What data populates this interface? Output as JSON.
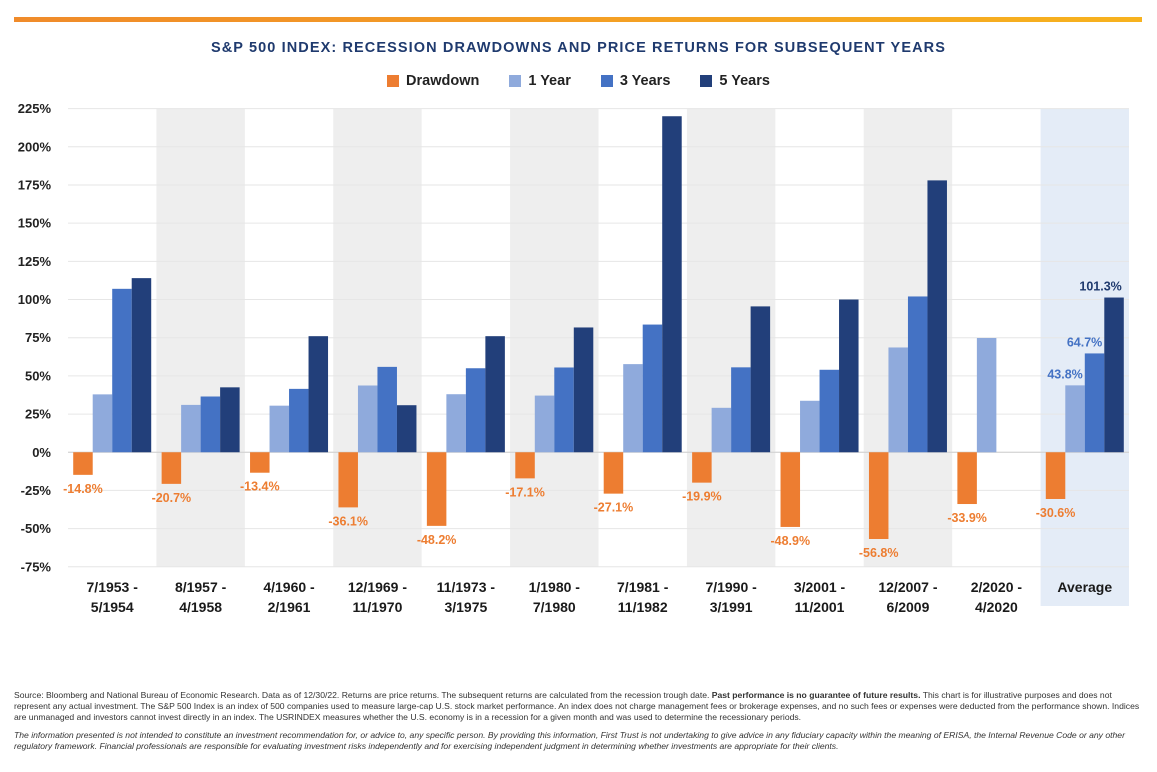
{
  "colors": {
    "drawdown": "#ed7d31",
    "one_year": "#8faadc",
    "three_years": "#4472c4",
    "five_years": "#223f7a",
    "band": "#eeeeee",
    "average_band": "#e4ecf7",
    "title": "#1f3a6e"
  },
  "chart_data": {
    "type": "bar",
    "title": "S&P 500 INDEX: RECESSION DRAWDOWNS AND PRICE RETURNS FOR SUBSEQUENT YEARS",
    "xlabel": "",
    "ylabel": "",
    "ylim": [
      -75,
      225
    ],
    "yticks": [
      -75,
      -50,
      -25,
      0,
      25,
      50,
      75,
      100,
      125,
      150,
      175,
      200,
      225
    ],
    "ytick_labels": [
      "-75%",
      "-50%",
      "-25%",
      "0%",
      "25%",
      "50%",
      "75%",
      "100%",
      "125%",
      "150%",
      "175%",
      "200%",
      "225%"
    ],
    "legend_position": "top-center",
    "categories": [
      [
        "7/1953 -",
        "5/1954"
      ],
      [
        "8/1957 -",
        "4/1958"
      ],
      [
        "4/1960 -",
        "2/1961"
      ],
      [
        "12/1969 -",
        "11/1970"
      ],
      [
        "11/1973 -",
        "3/1975"
      ],
      [
        "1/1980 -",
        "7/1980"
      ],
      [
        "7/1981 -",
        "11/1982"
      ],
      [
        "7/1990 -",
        "3/1991"
      ],
      [
        "3/2001 -",
        "11/2001"
      ],
      [
        "12/2007 -",
        "6/2009"
      ],
      [
        "2/2020 -",
        "4/2020"
      ],
      [
        "Average"
      ]
    ],
    "series": [
      {
        "name": "Drawdown",
        "values": [
          -14.8,
          -20.7,
          -13.4,
          -36.1,
          -48.2,
          -17.1,
          -27.1,
          -19.9,
          -48.9,
          -56.8,
          -33.9,
          -30.6
        ],
        "labels": [
          "-14.8%",
          "-20.7%",
          "-13.4%",
          "-36.1%",
          "-48.2%",
          "-17.1%",
          "-27.1%",
          "-19.9%",
          "-48.9%",
          "-56.8%",
          "-33.9%",
          "-30.6%"
        ]
      },
      {
        "name": "1 Year",
        "values": [
          37.9,
          31.0,
          30.5,
          43.7,
          38.0,
          37.1,
          57.7,
          29.1,
          33.7,
          68.6,
          74.8,
          43.8
        ],
        "labels": [
          "",
          "",
          "",
          "",
          "",
          "",
          "",
          "",
          "",
          "",
          "",
          "43.8%"
        ]
      },
      {
        "name": "3 Years",
        "values": [
          107.0,
          36.5,
          41.5,
          55.9,
          55.0,
          55.5,
          83.6,
          55.6,
          54.0,
          102.0,
          null,
          64.7
        ],
        "labels": [
          "",
          "",
          "",
          "",
          "",
          "",
          "",
          "",
          "",
          "",
          "",
          "64.7%"
        ]
      },
      {
        "name": "5 Years",
        "values": [
          114.0,
          42.5,
          76.0,
          30.8,
          76.0,
          81.7,
          220.0,
          95.5,
          100.0,
          178.0,
          null,
          101.3
        ],
        "labels": [
          "",
          "",
          "",
          "",
          "",
          "",
          "",
          "",
          "",
          "",
          "",
          "101.3%"
        ]
      }
    ]
  },
  "footer": {
    "source_part1": "Source: Bloomberg and National Bureau of Economic Research. Data as of 12/30/22. Returns are price returns. The subsequent returns are calculated from the recession trough date.",
    "source_bold": "Past performance is no guarantee of future results.",
    "source_part2": "This chart is for illustrative purposes and does not represent any actual investment. The S&P 500 Index is an index of 500 companies used to measure large-cap U.S. stock market performance. An index does not charge management fees or brokerage expenses, and no such fees or expenses were deducted from the performance shown. Indices are unmanaged and investors cannot invest directly in an index. The USRINDEX measures whether the U.S. economy is in a recession for a given month and was used to determine the recessionary periods.",
    "disclaimer": "The information presented is not intended to constitute an investment recommendation for, or advice to, any specific person. By providing this information, First Trust is not undertaking to give advice in any fiduciary capacity within the meaning of ERISA, the Internal Revenue Code or any other regulatory framework. Financial professionals are responsible for evaluating investment risks independently and for exercising independent judgment in determining whether investments are appropriate for their clients."
  }
}
